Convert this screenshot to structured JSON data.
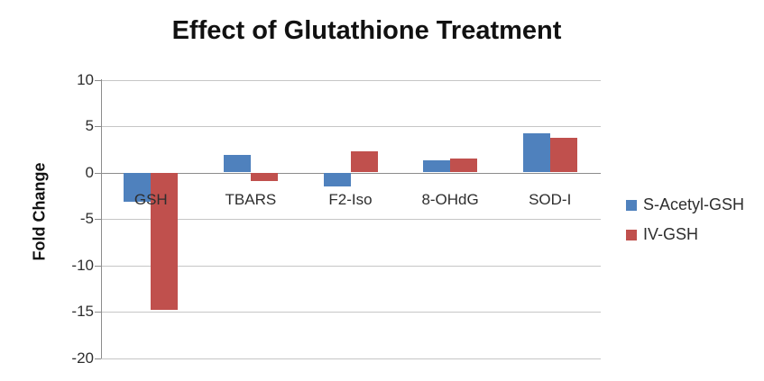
{
  "chart_data": {
    "type": "bar",
    "title": "Effect of Glutathione Treatment",
    "categories": [
      "GSH",
      "TBARS",
      "F2-Iso",
      "8-OHdG",
      "SOD-I"
    ],
    "series": [
      {
        "name": "S-Acetyl-GSH",
        "color": "#4F81BD",
        "values": [
          -3.2,
          1.9,
          -1.5,
          1.3,
          4.2
        ]
      },
      {
        "name": "IV-GSH",
        "color": "#C0504D",
        "values": [
          -14.8,
          -0.9,
          2.3,
          1.5,
          3.7
        ]
      }
    ],
    "xlabel": "",
    "ylabel": "Fold Change",
    "ylim": [
      -20,
      10
    ],
    "yticks": [
      10,
      5,
      0,
      -5,
      -10,
      -15,
      -20
    ],
    "grid": true,
    "legend_position": "right",
    "axis_color": "#8c8c8c",
    "gridline_color": "#c6c6c6"
  }
}
